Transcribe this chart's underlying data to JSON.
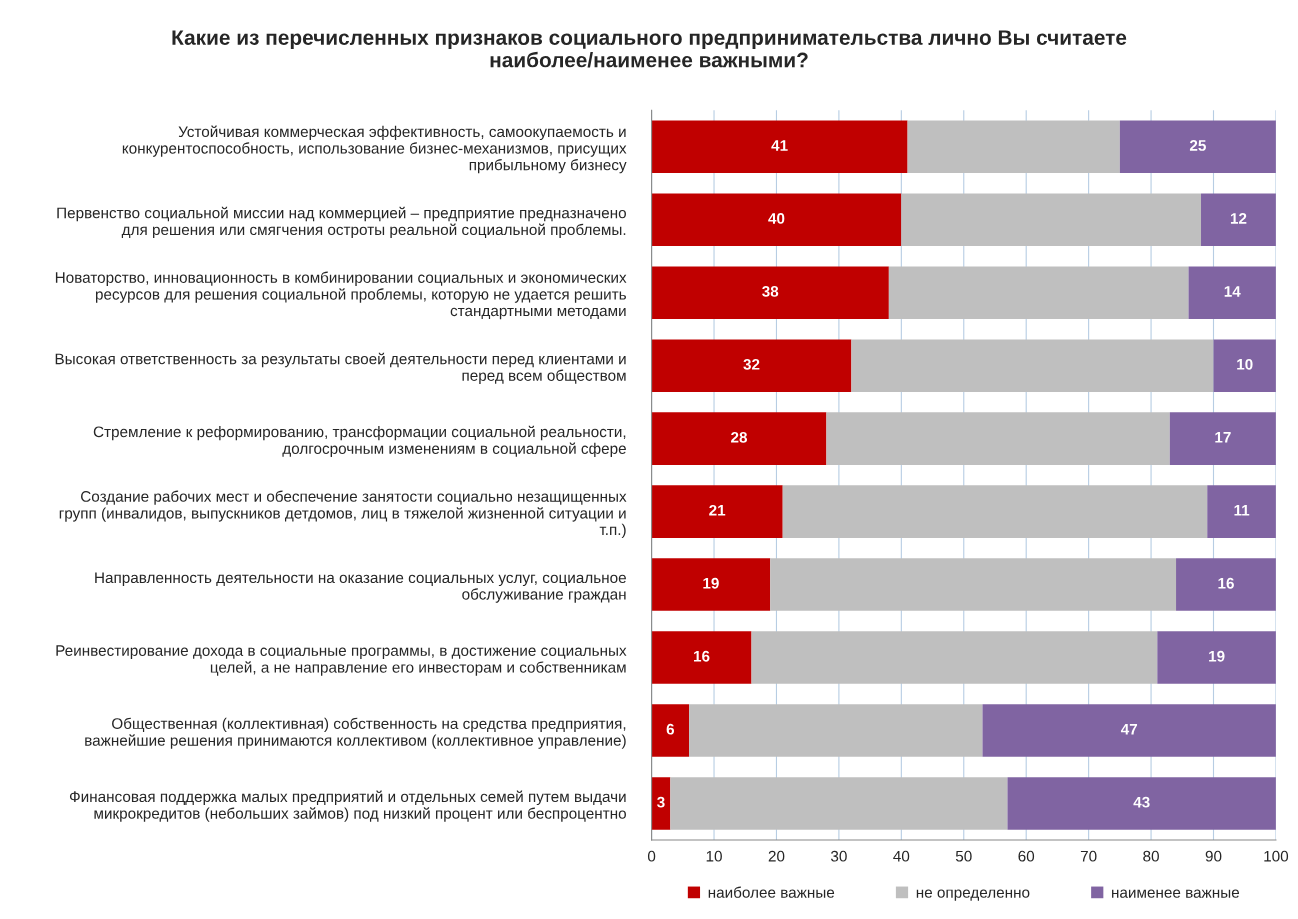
{
  "chart_data": {
    "type": "bar",
    "orientation": "horizontal",
    "stacked": true,
    "title": "Какие из перечисленных признаков социального предпринимательства лично Вы считаете\nнаиболее/наименее важными?",
    "categories": [
      "Устойчивая коммерческая эффективность, самоокупаемость и\nконкурентоспособность, использование бизнес-механизмов, присущих\nприбыльному бизнесу",
      "Первенство социальной миссии над коммерцией – предприятие предназначено\nдля решения или смягчения остроты реальной социальной проблемы.",
      "Новаторство, инновационность в комбинировании социальных и экономических\nресурсов для решения социальной проблемы, которую не удается решить\nстандартными методами",
      "Высокая ответственность за результаты своей деятельности перед клиентами и\nперед всем обществом",
      "Стремление к реформированию, трансформации социальной реальности,\nдолгосрочным изменениям в социальной сфере",
      "Создание рабочих мест и обеспечение занятости социально незащищенных\nгрупп (инвалидов, выпускников детдомов, лиц в тяжелой жизненной ситуации и\nт.п.)",
      "Направленность деятельности на оказание социальных услуг, социальное\nобслуживание граждан",
      "Реинвестирование дохода в социальные программы, в достижение социальных\nцелей, а не направление его инвесторам и собственникам",
      "Общественная (коллективная) собственность на средства предприятия,\nважнейшие решения принимаются коллективом (коллективное управление)",
      "Финансовая поддержка малых предприятий и отдельных семей путем выдачи\nмикрокредитов (небольших займов) под низкий процент или беспроцентно"
    ],
    "series": [
      {
        "name": "наиболее важные",
        "color": "#c00000",
        "values": [
          41,
          40,
          38,
          32,
          28,
          21,
          19,
          16,
          6,
          3
        ],
        "value_labels": [
          "41",
          "40",
          "38",
          "32",
          "28",
          "21",
          "19",
          "16",
          "6",
          "3"
        ]
      },
      {
        "name": "не определенно",
        "color": "#bfbfbf",
        "values": [
          34,
          48,
          48,
          58,
          55,
          68,
          65,
          65,
          47,
          54
        ]
      },
      {
        "name": "наименее важные",
        "color": "#8064a2",
        "values": [
          25,
          12,
          14,
          10,
          17,
          11,
          16,
          19,
          47,
          43
        ],
        "value_labels": [
          "25",
          "12",
          "14",
          "10",
          "17",
          "11",
          "16",
          "19",
          "47",
          "43"
        ]
      }
    ],
    "xlim": [
      0,
      100
    ],
    "xticks": [
      0,
      10,
      20,
      30,
      40,
      50,
      60,
      70,
      80,
      90,
      100
    ],
    "grid": "x",
    "legend": "bottom"
  }
}
